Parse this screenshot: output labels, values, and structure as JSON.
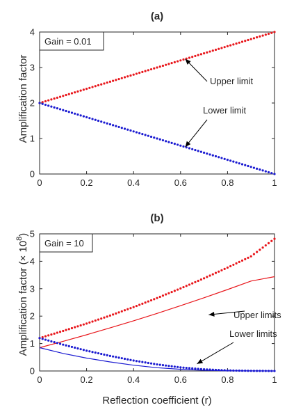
{
  "chart_data": [
    {
      "type": "scatter",
      "title": "(a)",
      "xlabel": "",
      "ylabel": "Amplification factor",
      "xlim": [
        0,
        1
      ],
      "ylim": [
        0,
        4
      ],
      "xticks": [
        "0",
        "0.2",
        "0.4",
        "0.6",
        "0.8",
        "1"
      ],
      "yticks": [
        "0",
        "1",
        "2",
        "3",
        "4"
      ],
      "grid": false,
      "legend_box": "Gain = 0.01",
      "annotations": [
        {
          "text": "Upper limit",
          "points_to": [
            0.62,
            3.24
          ]
        },
        {
          "text": "Lower limit",
          "points_to": [
            0.62,
            0.76
          ]
        }
      ],
      "series": [
        {
          "color": "#e8161b",
          "style": "dotted",
          "x_start": 0,
          "x_end": 1,
          "n_points": 81,
          "formula": "y = 2 + 2x",
          "y_at_0": 2,
          "y_at_1": 4
        },
        {
          "color": "#1a1ad1",
          "style": "dotted",
          "x_start": 0,
          "x_end": 1,
          "n_points": 81,
          "formula": "y = 2 - 2x",
          "y_at_0": 2,
          "y_at_1": 0
        }
      ]
    },
    {
      "type": "line",
      "title": "(b)",
      "xlabel": "Reflection coefficient (r)",
      "ylabel": "Amplification factor (× 10",
      "ylabel_sup": "8",
      "ylabel_end": ")",
      "xlim": [
        0,
        1
      ],
      "ylim": [
        0,
        5
      ],
      "xticks": [
        "0",
        "0.2",
        "0.4",
        "0.6",
        "0.8",
        "1"
      ],
      "yticks": [
        "0",
        "1",
        "2",
        "3",
        "4",
        "5"
      ],
      "grid": false,
      "legend_box": "Gain = 10",
      "annotations": [
        {
          "text": "Upper limits",
          "points_to": [
            0.72,
            2.05
          ]
        },
        {
          "text": "Lower limits",
          "points_to": [
            0.67,
            0.26
          ]
        }
      ],
      "series": [
        {
          "color": "#e8161b",
          "style": "dotted",
          "x": [
            0,
            0.1,
            0.2,
            0.3,
            0.4,
            0.5,
            0.6,
            0.7,
            0.8,
            0.9,
            1.0
          ],
          "y": [
            1.2,
            1.46,
            1.73,
            2.02,
            2.33,
            2.66,
            3.01,
            3.38,
            3.77,
            4.18,
            4.82
          ]
        },
        {
          "color": "#e8161b",
          "style": "solid",
          "x": [
            0,
            0.1,
            0.2,
            0.3,
            0.4,
            0.5,
            0.6,
            0.7,
            0.8,
            0.9,
            1.0
          ],
          "y": [
            0.85,
            1.08,
            1.32,
            1.57,
            1.83,
            2.1,
            2.38,
            2.67,
            2.97,
            3.28,
            3.44
          ]
        },
        {
          "color": "#1a1ad1",
          "style": "dotted",
          "x": [
            0,
            0.1,
            0.2,
            0.3,
            0.4,
            0.5,
            0.6,
            0.7,
            0.8,
            0.9,
            1.0
          ],
          "y": [
            1.2,
            0.96,
            0.74,
            0.55,
            0.38,
            0.24,
            0.13,
            0.06,
            0.02,
            0.005,
            0.0
          ]
        },
        {
          "color": "#1a1ad1",
          "style": "solid",
          "x": [
            0,
            0.1,
            0.2,
            0.3,
            0.4,
            0.5,
            0.6,
            0.7,
            0.8,
            0.9,
            1.0
          ],
          "y": [
            0.85,
            0.64,
            0.47,
            0.33,
            0.21,
            0.12,
            0.06,
            0.025,
            0.008,
            0.002,
            0.0
          ]
        }
      ]
    }
  ]
}
